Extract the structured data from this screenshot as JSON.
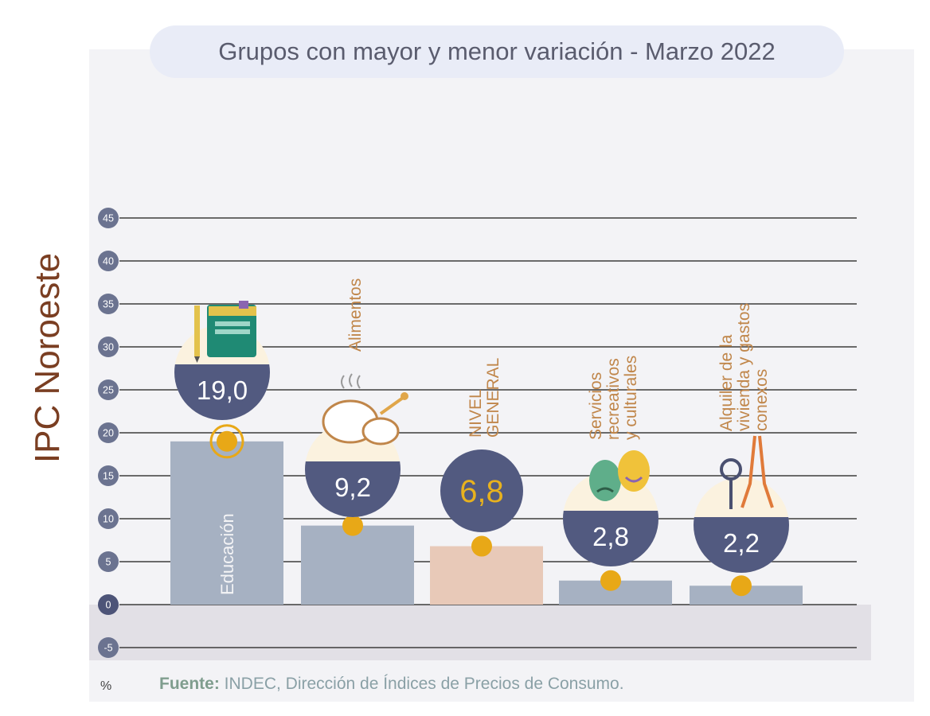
{
  "title": "Grupos con mayor y menor variación - Marzo 2022",
  "side_label": "IPC Noroeste",
  "unit_label": "%",
  "source": {
    "prefix": "Fuente:",
    "text": " INDEC, Dirección de Índices de Precios de Consumo."
  },
  "colors": {
    "bar_default": "#a6b1c2",
    "bar_highlight": "#e8c9b8",
    "badge": "#525a80",
    "badge_text": "#ffffff",
    "badge_highlight_text": "#e8b21e",
    "dot": "#e8a817",
    "category_text": "#c0864a",
    "tick_circle": "#6b7390",
    "gridline": "#3c3c3c",
    "negative_band": "#e2e0e6"
  },
  "chart_data": {
    "type": "bar",
    "title": "Grupos con mayor y menor variación - Marzo 2022",
    "ylabel": "%",
    "ylim": [
      -5,
      45
    ],
    "yticks": [
      45,
      40,
      35,
      30,
      25,
      20,
      15,
      10,
      5,
      0,
      -5
    ],
    "ytick_labels": [
      "45",
      "40",
      "35",
      "30",
      "25",
      "20",
      "15",
      "10",
      "5",
      "0",
      "-5"
    ],
    "grid": true,
    "categories": [
      {
        "label_lines": [
          "Educación"
        ],
        "value": 19.0,
        "display": "19,0",
        "icon": "book-icon",
        "highlight": false,
        "label_inside_bar": true
      },
      {
        "label_lines": [
          "Alimentos"
        ],
        "value": 9.2,
        "display": "9,2",
        "icon": "roast-chicken-icon",
        "highlight": false,
        "label_inside_bar": false
      },
      {
        "label_lines": [
          "NIVEL",
          "GENERAL"
        ],
        "value": 6.8,
        "display": "6,8",
        "icon": "",
        "highlight": true,
        "label_inside_bar": false
      },
      {
        "label_lines": [
          "Servicios",
          "recreativos",
          "y culturales"
        ],
        "value": 2.8,
        "display": "2,8",
        "icon": "theater-masks-icon",
        "highlight": false,
        "label_inside_bar": false
      },
      {
        "label_lines": [
          "Alquiler de la",
          "vivienda y gastos",
          "conexos"
        ],
        "value": 2.2,
        "display": "2,2",
        "icon": "key-and-pliers-icon",
        "highlight": false,
        "label_inside_bar": false
      }
    ]
  }
}
